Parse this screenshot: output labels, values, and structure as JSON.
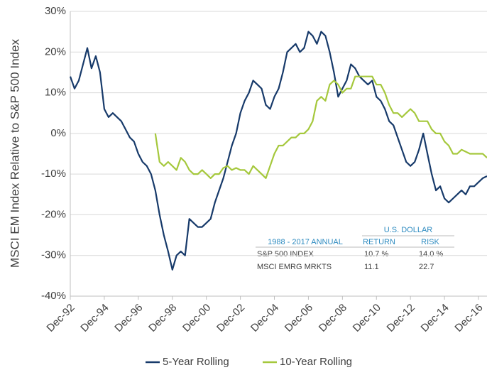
{
  "chart_data": {
    "type": "line",
    "y_label": "MSCI EM Index Relative to S&P 500 Index",
    "x": [
      "1992-12",
      "1993-03",
      "1993-06",
      "1993-09",
      "1993-12",
      "1994-03",
      "1994-06",
      "1994-09",
      "1994-12",
      "1995-03",
      "1995-06",
      "1995-09",
      "1995-12",
      "1996-03",
      "1996-06",
      "1996-09",
      "1996-12",
      "1997-03",
      "1997-06",
      "1997-09",
      "1997-12",
      "1998-03",
      "1998-06",
      "1998-09",
      "1998-12",
      "1999-03",
      "1999-06",
      "1999-09",
      "1999-12",
      "2000-03",
      "2000-06",
      "2000-09",
      "2000-12",
      "2001-03",
      "2001-06",
      "2001-09",
      "2001-12",
      "2002-03",
      "2002-06",
      "2002-09",
      "2002-12",
      "2003-03",
      "2003-06",
      "2003-09",
      "2003-12",
      "2004-03",
      "2004-06",
      "2004-09",
      "2004-12",
      "2005-03",
      "2005-06",
      "2005-09",
      "2005-12",
      "2006-03",
      "2006-06",
      "2006-09",
      "2006-12",
      "2007-03",
      "2007-06",
      "2007-09",
      "2007-12",
      "2008-03",
      "2008-06",
      "2008-09",
      "2008-12",
      "2009-03",
      "2009-06",
      "2009-09",
      "2009-12",
      "2010-03",
      "2010-06",
      "2010-09",
      "2010-12",
      "2011-03",
      "2011-06",
      "2011-09",
      "2011-12",
      "2012-03",
      "2012-06",
      "2012-09",
      "2012-12",
      "2013-03",
      "2013-06",
      "2013-09",
      "2013-12",
      "2014-03",
      "2014-06",
      "2014-09",
      "2014-12",
      "2015-03",
      "2015-06",
      "2015-09",
      "2015-12",
      "2016-03",
      "2016-06",
      "2016-09",
      "2016-12",
      "2017-03",
      "2017-06"
    ],
    "series": [
      {
        "name": "5-Year Rolling",
        "color": "#173a6a",
        "values": [
          14,
          11,
          13,
          17,
          21,
          16,
          19,
          15,
          6,
          4,
          5,
          4,
          3,
          1,
          -1,
          -2,
          -5,
          -7,
          -8,
          -10,
          -14,
          -20,
          -25,
          -29,
          -33.5,
          -30,
          -29,
          -30,
          -21,
          -22,
          -23,
          -23,
          -22,
          -21,
          -17,
          -14,
          -11,
          -7,
          -3,
          0,
          5,
          8,
          10,
          13,
          12,
          11,
          7,
          6,
          9,
          11,
          15,
          20,
          21,
          22,
          20,
          21,
          25,
          24,
          22,
          25,
          24,
          20,
          15,
          9,
          11,
          13,
          17,
          16,
          14,
          13,
          12,
          13,
          9,
          8,
          6,
          3,
          2,
          -1,
          -4,
          -7,
          -8,
          -7,
          -4,
          0,
          -5,
          -10,
          -14,
          -13,
          -16,
          -17,
          -16,
          -15,
          -14,
          -15,
          -13,
          -13,
          -12,
          -11,
          -10.5
        ]
      },
      {
        "name": "10-Year Rolling",
        "color": "#a5c83c",
        "values": [
          null,
          null,
          null,
          null,
          null,
          null,
          null,
          null,
          null,
          null,
          null,
          null,
          null,
          null,
          null,
          null,
          null,
          null,
          null,
          null,
          0,
          -7,
          -8,
          -7,
          -8,
          -9,
          -6,
          -7,
          -9,
          -10,
          -10,
          -9,
          -10,
          -11,
          -10,
          -10,
          -8.5,
          -8,
          -9,
          -8.5,
          -9,
          -9,
          -10,
          -8,
          -9,
          -10,
          -11,
          -8,
          -5,
          -3,
          -3,
          -2,
          -1,
          -1,
          0,
          0,
          1,
          3,
          8,
          9,
          8,
          12,
          13,
          12,
          10,
          11,
          11,
          14,
          14,
          14,
          14,
          14,
          12,
          12,
          10,
          7,
          5,
          5,
          4,
          5,
          6,
          5,
          3,
          3,
          3,
          1,
          0,
          0,
          -2,
          -3,
          -5,
          -5,
          -4,
          -4.5,
          -5,
          -5,
          -5,
          -5,
          -6
        ]
      }
    ],
    "xlim": [
      "1992-12",
      "2017-06"
    ],
    "xticks": [
      {
        "value": "1992-12",
        "label": "Dec-92"
      },
      {
        "value": "1994-12",
        "label": "Dec-94"
      },
      {
        "value": "1996-12",
        "label": "Dec-96"
      },
      {
        "value": "1998-12",
        "label": "Dec-98"
      },
      {
        "value": "2000-12",
        "label": "Dec-00"
      },
      {
        "value": "2002-12",
        "label": "Dec-02"
      },
      {
        "value": "2004-12",
        "label": "Dec-04"
      },
      {
        "value": "2006-12",
        "label": "Dec-06"
      },
      {
        "value": "2008-12",
        "label": "Dec-08"
      },
      {
        "value": "2010-12",
        "label": "Dec-10"
      },
      {
        "value": "2012-12",
        "label": "Dec-12"
      },
      {
        "value": "2014-12",
        "label": "Dec-14"
      },
      {
        "value": "2016-12",
        "label": "Dec-16"
      }
    ],
    "ylim": [
      -40,
      30
    ],
    "yticks": [
      {
        "value": -40,
        "label": "-40%"
      },
      {
        "value": -30,
        "label": "-30%"
      },
      {
        "value": -20,
        "label": "-20%"
      },
      {
        "value": -10,
        "label": "-10%"
      },
      {
        "value": 0,
        "label": "0%"
      },
      {
        "value": 10,
        "label": "10%"
      },
      {
        "value": 20,
        "label": "20%"
      },
      {
        "value": 30,
        "label": "30%"
      }
    ],
    "grid": true,
    "legend": "bottom",
    "table": {
      "header": "U.S. DOLLAR",
      "columns": [
        "1988 - 2017 ANNUAL",
        "RETURN",
        "RISK"
      ],
      "rows": [
        [
          "S&P 500 INDEX",
          "10.7 %",
          "14.0 %"
        ],
        [
          "MSCI EMRG MRKTS",
          "11.1",
          "22.7"
        ]
      ]
    }
  }
}
